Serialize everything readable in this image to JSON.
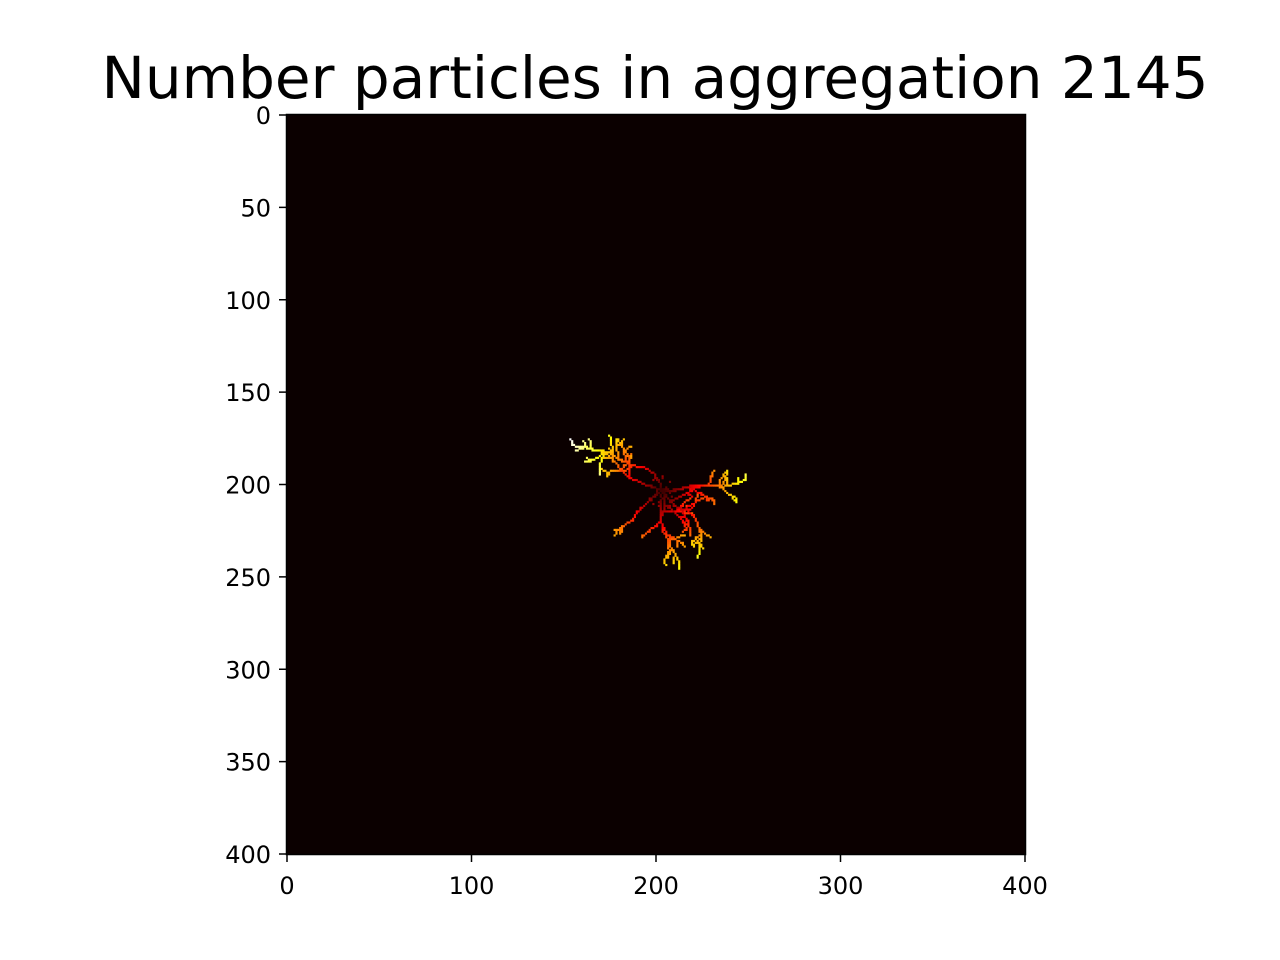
{
  "chart_data": {
    "type": "heatmap",
    "title": "Number particles in aggregation 2145",
    "xlabel": "",
    "ylabel": "",
    "xlim": [
      0,
      400
    ],
    "ylim": [
      400,
      0
    ],
    "x_ticks": [
      0,
      100,
      200,
      300,
      400
    ],
    "y_ticks": [
      0,
      50,
      100,
      150,
      200,
      250,
      300,
      350,
      400
    ],
    "x_tick_labels": [
      "0",
      "100",
      "200",
      "300",
      "400"
    ],
    "y_tick_labels": [
      "0",
      "50",
      "100",
      "150",
      "200",
      "250",
      "300",
      "350",
      "400"
    ],
    "grid": false,
    "colormap": "hot",
    "background_color": "#0b0000",
    "particle_count": 2145,
    "seed_center": [
      203,
      203
    ],
    "arms": [
      {
        "angle_deg": 262,
        "length": 58
      },
      {
        "angle_deg": 210,
        "length": 42
      },
      {
        "angle_deg": 345,
        "length": 46
      },
      {
        "angle_deg": 10,
        "length": 42
      },
      {
        "angle_deg": 160,
        "length": 34
      },
      {
        "angle_deg": 112,
        "length": 44
      },
      {
        "angle_deg": 58,
        "length": 46
      },
      {
        "angle_deg": 80,
        "length": 30
      }
    ]
  }
}
